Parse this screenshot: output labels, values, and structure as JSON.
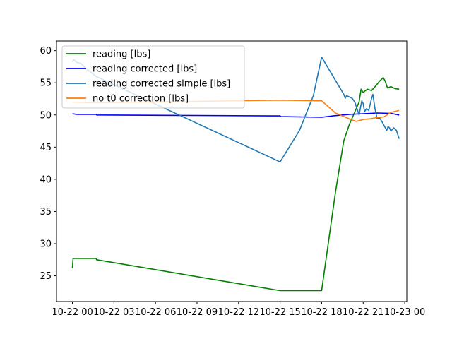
{
  "chart_data": {
    "type": "line",
    "title": "",
    "xlabel": "",
    "ylabel": "",
    "x_tick_labels": [
      "10-22 00",
      "10-22 03",
      "10-22 06",
      "10-22 09",
      "10-22 12",
      "10-22 15",
      "10-22 18",
      "10-22 21",
      "10-23 00"
    ],
    "x_ticks_hours": [
      0,
      3,
      6,
      9,
      12,
      15,
      18,
      21,
      24
    ],
    "xlim_hours": [
      -1.15,
      24.15
    ],
    "y_ticks": [
      25,
      30,
      35,
      40,
      45,
      50,
      55,
      60
    ],
    "ylim": [
      21.0,
      61.5
    ],
    "legend_position": "upper-left",
    "series": [
      {
        "name": "reading [lbs]",
        "color": "#008000",
        "points": [
          [
            0.0,
            26.2
          ],
          [
            0.05,
            27.7
          ],
          [
            0.5,
            27.7
          ],
          [
            1.0,
            27.7
          ],
          [
            1.7,
            27.7
          ],
          [
            1.75,
            27.5
          ],
          [
            15.0,
            22.7
          ],
          [
            18.0,
            22.7
          ],
          [
            19.0,
            38.0
          ],
          [
            19.6,
            46.0
          ],
          [
            20.0,
            48.5
          ],
          [
            20.4,
            50.5
          ],
          [
            20.7,
            52.0
          ],
          [
            20.85,
            54.0
          ],
          [
            21.0,
            53.5
          ],
          [
            21.3,
            54.0
          ],
          [
            21.6,
            53.8
          ],
          [
            21.9,
            54.5
          ],
          [
            22.2,
            55.3
          ],
          [
            22.45,
            55.8
          ],
          [
            22.6,
            55.2
          ],
          [
            22.75,
            54.2
          ],
          [
            23.0,
            54.4
          ],
          [
            23.3,
            54.1
          ],
          [
            23.6,
            54.0
          ]
        ]
      },
      {
        "name": "reading corrected [lbs]",
        "color": "#0000ff",
        "points": [
          [
            0.0,
            50.2
          ],
          [
            0.3,
            50.1
          ],
          [
            1.7,
            50.1
          ],
          [
            1.75,
            50.0
          ],
          [
            15.0,
            49.85
          ],
          [
            15.05,
            49.75
          ],
          [
            18.0,
            49.65
          ],
          [
            19.0,
            49.9
          ],
          [
            20.0,
            50.1
          ],
          [
            21.0,
            50.2
          ],
          [
            22.0,
            50.3
          ],
          [
            23.0,
            50.25
          ],
          [
            23.6,
            50.0
          ]
        ]
      },
      {
        "name": "reading corrected simple [lbs]",
        "color": "#1f77b4",
        "points": [
          [
            0.0,
            58.2
          ],
          [
            0.1,
            58.6
          ],
          [
            0.3,
            58.2
          ],
          [
            0.6,
            58.0
          ],
          [
            1.0,
            57.2
          ],
          [
            1.7,
            56.0
          ],
          [
            15.0,
            42.7
          ],
          [
            16.4,
            47.6
          ],
          [
            17.4,
            53.0
          ],
          [
            18.0,
            59.0
          ],
          [
            19.6,
            53.2
          ],
          [
            19.7,
            52.6
          ],
          [
            19.8,
            53.0
          ],
          [
            20.2,
            52.6
          ],
          [
            20.4,
            52.0
          ],
          [
            20.7,
            50.0
          ],
          [
            20.9,
            52.2
          ],
          [
            21.0,
            51.8
          ],
          [
            21.1,
            50.5
          ],
          [
            21.25,
            51.0
          ],
          [
            21.4,
            50.7
          ],
          [
            21.6,
            52.5
          ],
          [
            21.7,
            53.2
          ],
          [
            21.85,
            51.0
          ],
          [
            22.0,
            49.5
          ],
          [
            22.2,
            49.5
          ],
          [
            22.4,
            48.8
          ],
          [
            22.55,
            48.2
          ],
          [
            22.7,
            47.6
          ],
          [
            22.8,
            48.2
          ],
          [
            22.9,
            48.0
          ],
          [
            23.0,
            47.5
          ],
          [
            23.2,
            48.0
          ],
          [
            23.4,
            47.6
          ],
          [
            23.6,
            46.3
          ]
        ]
      },
      {
        "name": "no t0 correction [lbs]",
        "color": "#ff7f0e",
        "points": [
          [
            0.0,
            52.0
          ],
          [
            1.7,
            51.9
          ],
          [
            15.0,
            52.3
          ],
          [
            18.0,
            52.2
          ],
          [
            19.0,
            50.3
          ],
          [
            20.0,
            49.4
          ],
          [
            20.5,
            49.0
          ],
          [
            21.0,
            49.3
          ],
          [
            21.5,
            49.4
          ],
          [
            22.0,
            49.6
          ],
          [
            22.5,
            49.7
          ],
          [
            23.0,
            50.4
          ],
          [
            23.6,
            50.7
          ]
        ]
      }
    ]
  }
}
